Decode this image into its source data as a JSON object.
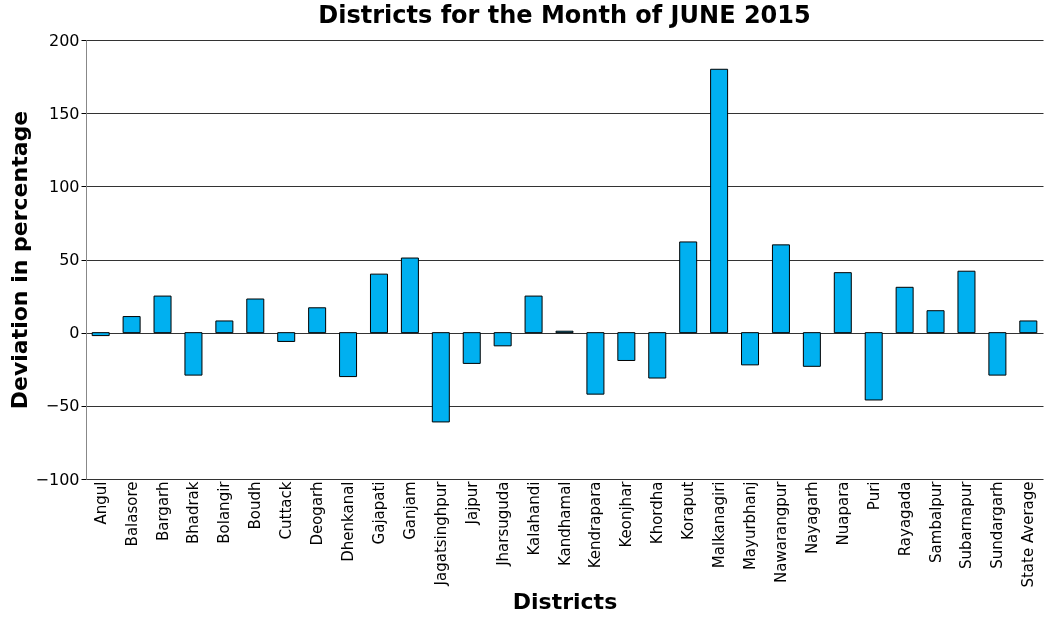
{
  "chart_data": {
    "type": "bar",
    "title": "Districts for the Month of JUNE 2015",
    "xlabel": "Districts",
    "ylabel": "Deviation in percentage",
    "categories": [
      "Angul",
      "Balasore",
      "Bargarh",
      "Bhadrak",
      "Bolangir",
      "Boudh",
      "Cuttack",
      "Deogarh",
      "Dhenkanal",
      "Gajapati",
      "Ganjam",
      "Jagatsinghpur",
      "Jajpur",
      "Jharsuguda",
      "Kalahandi",
      "Kandhamal",
      "Kendrapara",
      "Keonjhar",
      "Khordha",
      "Koraput",
      "Malkanagiri",
      "Mayurbhanj",
      "Nawarangpur",
      "Nayagarh",
      "Nuapara",
      "Puri",
      "Rayagada",
      "Sambalpur",
      "Subarnapur",
      "Sundargarh",
      "State Average"
    ],
    "values": [
      -2,
      11,
      25,
      -29,
      8,
      23,
      -6,
      17,
      -30,
      40,
      51,
      -61,
      -21,
      -9,
      25,
      1,
      -42,
      -19,
      -31,
      62,
      180,
      -22,
      60,
      -23,
      41,
      -46,
      31,
      15,
      42,
      -29,
      8
    ],
    "color": "#00b0f0",
    "ylim": [
      -100,
      200
    ],
    "yticks": [
      -100,
      -50,
      0,
      50,
      100,
      150,
      200
    ],
    "grid": "y"
  }
}
